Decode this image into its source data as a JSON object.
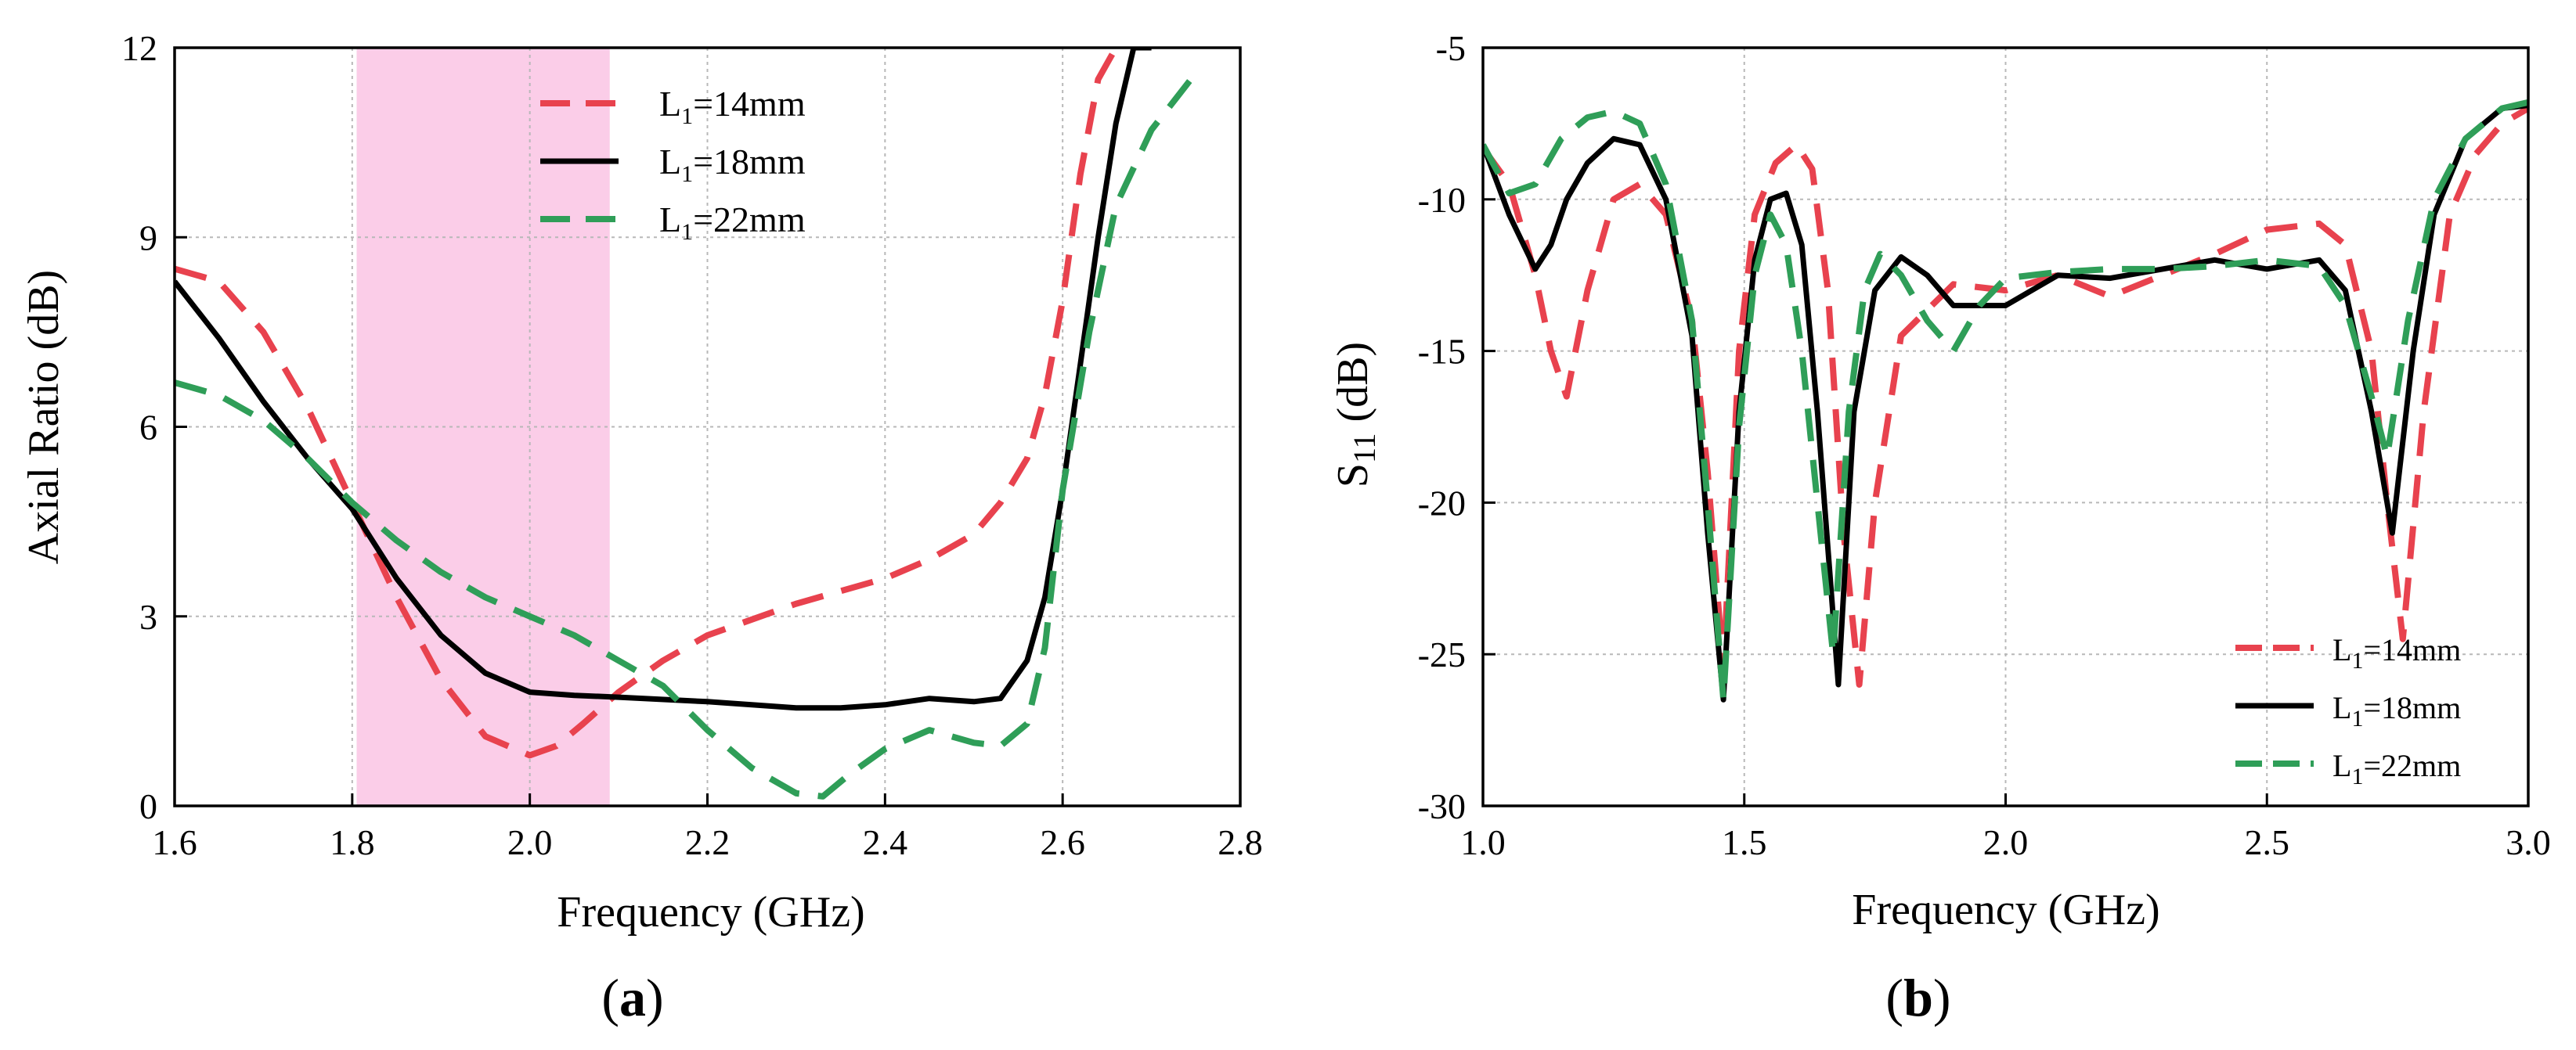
{
  "colors": {
    "red": "#e8424e",
    "black": "#000000",
    "green": "#2f9e58",
    "band": "#fbcde8",
    "grid": "#b8b8b8"
  },
  "chart_data": [
    {
      "type": "line",
      "panel_label_open": "(",
      "panel_label_letter": "a",
      "panel_label_close": ")",
      "xlabel": "Frequency (GHz)",
      "ylabel": "Axial Ratio (dB)",
      "xlim": [
        1.6,
        2.8
      ],
      "ylim": [
        0,
        12
      ],
      "xticks": [
        1.6,
        1.8,
        2.0,
        2.2,
        2.4,
        2.6,
        2.8
      ],
      "xtick_labels": [
        "1.6",
        "1.8",
        "2.0",
        "2.2",
        "2.4",
        "2.6",
        "2.8"
      ],
      "yticks": [
        0,
        3,
        6,
        9,
        12
      ],
      "ytick_labels": [
        "0",
        "3",
        "6",
        "9",
        "12"
      ],
      "grid": true,
      "legend_position": "top-center",
      "shaded_band": [
        1.805,
        2.09
      ],
      "series": [
        {
          "label_base": "L",
          "label_sub": "1",
          "label_rest": "=14mm",
          "style": "dashed",
          "color": "#e8424e",
          "x": [
            1.6,
            1.65,
            1.7,
            1.75,
            1.8,
            1.85,
            1.9,
            1.95,
            2.0,
            2.03,
            2.06,
            2.1,
            2.15,
            2.2,
            2.3,
            2.4,
            2.45,
            2.5,
            2.53,
            2.56,
            2.58,
            2.6,
            2.62,
            2.64,
            2.66
          ],
          "y": [
            8.5,
            8.3,
            7.5,
            6.3,
            4.8,
            3.3,
            2.0,
            1.1,
            0.8,
            0.95,
            1.3,
            1.8,
            2.3,
            2.7,
            3.2,
            3.6,
            3.9,
            4.3,
            4.8,
            5.5,
            6.5,
            8.0,
            10.0,
            11.5,
            12.0
          ],
          "label": "L1=14mm"
        },
        {
          "label_base": "L",
          "label_sub": "1",
          "label_rest": "=18mm",
          "style": "solid",
          "color": "#000000",
          "x": [
            1.6,
            1.65,
            1.7,
            1.75,
            1.8,
            1.85,
            1.9,
            1.95,
            2.0,
            2.05,
            2.1,
            2.2,
            2.3,
            2.35,
            2.4,
            2.45,
            2.5,
            2.53,
            2.56,
            2.58,
            2.6,
            2.62,
            2.64,
            2.66,
            2.68,
            2.7
          ],
          "y": [
            8.3,
            7.4,
            6.4,
            5.5,
            4.7,
            3.6,
            2.7,
            2.1,
            1.8,
            1.75,
            1.72,
            1.65,
            1.55,
            1.55,
            1.6,
            1.7,
            1.65,
            1.7,
            2.3,
            3.3,
            5.0,
            7.0,
            9.0,
            10.8,
            12.0,
            12.0
          ],
          "label": "L1=18mm"
        },
        {
          "label_base": "L",
          "label_sub": "1",
          "label_rest": "=22mm",
          "style": "dashed",
          "color": "#2f9e58",
          "x": [
            1.6,
            1.65,
            1.7,
            1.75,
            1.8,
            1.85,
            1.9,
            1.95,
            2.0,
            2.05,
            2.1,
            2.15,
            2.2,
            2.25,
            2.3,
            2.33,
            2.36,
            2.4,
            2.45,
            2.5,
            2.53,
            2.56,
            2.58,
            2.6,
            2.63,
            2.66,
            2.7,
            2.75
          ],
          "y": [
            6.7,
            6.5,
            6.1,
            5.5,
            4.8,
            4.2,
            3.7,
            3.3,
            3.0,
            2.7,
            2.3,
            1.9,
            1.2,
            0.6,
            0.2,
            0.15,
            0.5,
            0.9,
            1.2,
            1.0,
            0.95,
            1.3,
            2.5,
            5.0,
            7.5,
            9.5,
            10.7,
            11.6
          ],
          "label": "L1=22mm"
        }
      ]
    },
    {
      "type": "line",
      "panel_label_open": "(",
      "panel_label_letter": "b",
      "panel_label_close": ")",
      "xlabel": "Frequency (GHz)",
      "ylabel_base": "S",
      "ylabel_sub": "11",
      "ylabel_rest": " (dB)",
      "xlim": [
        1.0,
        3.0
      ],
      "ylim": [
        -30,
        -5
      ],
      "xticks": [
        1.0,
        1.5,
        2.0,
        2.5,
        3.0
      ],
      "xtick_labels": [
        "1.0",
        "1.5",
        "2.0",
        "2.5",
        "3.0"
      ],
      "yticks": [
        -30,
        -25,
        -20,
        -15,
        -10,
        -5
      ],
      "ytick_labels": [
        "-30",
        "-25",
        "-20",
        "-15",
        "-10",
        "-5"
      ],
      "grid": true,
      "legend_position": "bottom-right",
      "series": [
        {
          "label_base": "L",
          "label_sub": "1",
          "label_rest": "=14mm",
          "style": "dashed",
          "color": "#e8424e",
          "x": [
            1.0,
            1.05,
            1.1,
            1.13,
            1.16,
            1.2,
            1.25,
            1.3,
            1.35,
            1.4,
            1.43,
            1.46,
            1.49,
            1.52,
            1.56,
            1.6,
            1.63,
            1.66,
            1.69,
            1.72,
            1.75,
            1.8,
            1.9,
            2.0,
            2.1,
            2.2,
            2.3,
            2.4,
            2.5,
            2.6,
            2.65,
            2.7,
            2.73,
            2.76,
            2.8,
            2.85,
            2.9,
            2.95,
            3.0
          ],
          "y": [
            -8.3,
            -9.5,
            -12.5,
            -15.0,
            -16.5,
            -13.0,
            -10.0,
            -9.5,
            -10.5,
            -14.0,
            -19.0,
            -25.5,
            -15.0,
            -10.5,
            -8.8,
            -8.2,
            -9.0,
            -13.0,
            -21.0,
            -26.0,
            -20.0,
            -14.5,
            -12.8,
            -13.0,
            -12.5,
            -13.2,
            -12.5,
            -11.8,
            -11.0,
            -10.8,
            -11.5,
            -15.0,
            -20.0,
            -24.5,
            -17.0,
            -10.5,
            -8.5,
            -7.5,
            -7.0
          ],
          "label": "L1=14mm"
        },
        {
          "label_base": "L",
          "label_sub": "1",
          "label_rest": "=18mm",
          "style": "solid",
          "color": "#000000",
          "x": [
            1.0,
            1.05,
            1.1,
            1.13,
            1.16,
            1.2,
            1.25,
            1.3,
            1.35,
            1.4,
            1.43,
            1.46,
            1.49,
            1.52,
            1.55,
            1.58,
            1.61,
            1.64,
            1.68,
            1.71,
            1.75,
            1.8,
            1.85,
            1.9,
            2.0,
            2.1,
            2.2,
            2.3,
            2.4,
            2.5,
            2.6,
            2.65,
            2.7,
            2.74,
            2.78,
            2.82,
            2.88,
            2.95,
            3.0
          ],
          "y": [
            -8.2,
            -10.5,
            -12.3,
            -11.5,
            -10.0,
            -8.8,
            -8.0,
            -8.2,
            -10.0,
            -14.5,
            -21.0,
            -26.5,
            -17.0,
            -12.0,
            -10.0,
            -9.8,
            -11.5,
            -17.0,
            -26.0,
            -17.0,
            -13.0,
            -11.9,
            -12.5,
            -13.5,
            -13.5,
            -12.5,
            -12.6,
            -12.3,
            -12.0,
            -12.3,
            -12.0,
            -13.0,
            -17.0,
            -21.0,
            -15.0,
            -10.5,
            -8.0,
            -7.0,
            -6.9
          ],
          "label": "L1=18mm"
        },
        {
          "label_base": "L",
          "label_sub": "1",
          "label_rest": "=22mm",
          "style": "dashed",
          "color": "#2f9e58",
          "x": [
            1.0,
            1.05,
            1.1,
            1.15,
            1.2,
            1.25,
            1.3,
            1.35,
            1.4,
            1.43,
            1.46,
            1.49,
            1.52,
            1.55,
            1.58,
            1.61,
            1.64,
            1.67,
            1.7,
            1.73,
            1.76,
            1.8,
            1.85,
            1.9,
            1.95,
            2.0,
            2.1,
            2.2,
            2.3,
            2.4,
            2.5,
            2.6,
            2.65,
            2.7,
            2.73,
            2.77,
            2.82,
            2.88,
            2.95,
            3.0
          ],
          "y": [
            -8.2,
            -9.8,
            -9.5,
            -8.0,
            -7.3,
            -7.1,
            -7.5,
            -9.5,
            -14.0,
            -20.0,
            -26.5,
            -17.5,
            -12.5,
            -10.5,
            -11.5,
            -15.0,
            -20.0,
            -25.0,
            -17.0,
            -13.0,
            -11.8,
            -12.5,
            -14.0,
            -15.0,
            -13.5,
            -12.6,
            -12.4,
            -12.3,
            -12.3,
            -12.2,
            -12.0,
            -12.2,
            -13.5,
            -16.5,
            -18.5,
            -14.0,
            -10.0,
            -8.0,
            -7.0,
            -6.8
          ],
          "label": "L1=22mm"
        }
      ]
    }
  ]
}
